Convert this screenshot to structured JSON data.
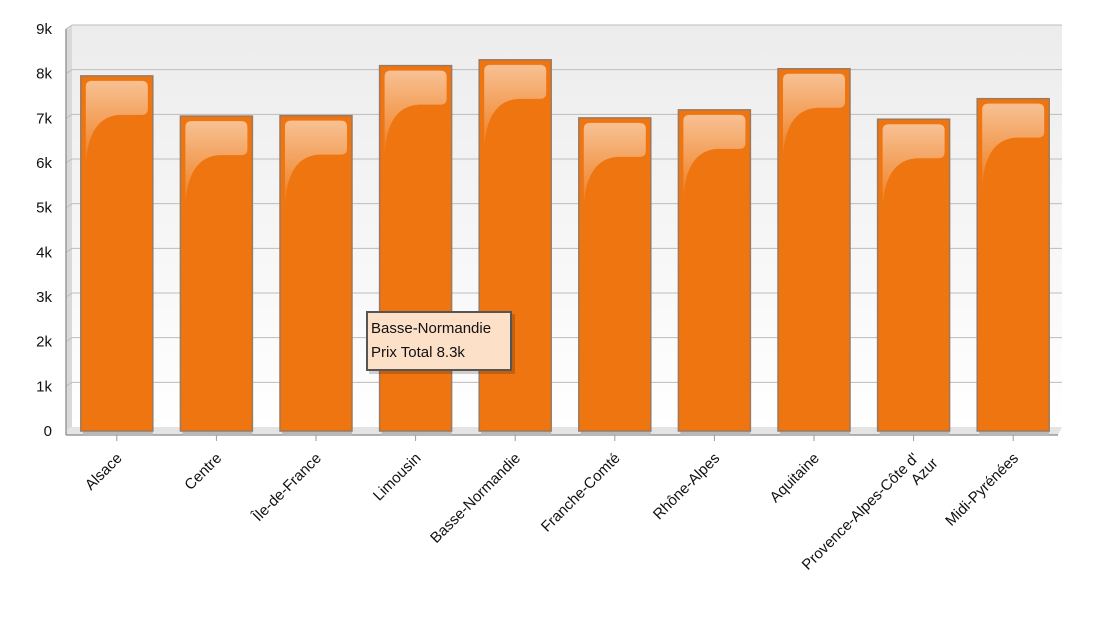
{
  "chart_data": {
    "type": "bar",
    "categories": [
      "Alsace",
      "Centre",
      "Île-de-France",
      "Limousin",
      "Basse-Normandie",
      "Franche-Comté",
      "Rhône-Alpes",
      "Aquitaine",
      "Provence-Alpes-Côte d' Azur",
      "Midi-Pyrénées"
    ],
    "series": [
      {
        "values": [
          7950,
          7050,
          7060,
          8180,
          8310,
          7010,
          7190,
          8110,
          6980,
          7440
        ]
      }
    ],
    "y_ticks": [
      "0",
      "1k",
      "2k",
      "3k",
      "4k",
      "5k",
      "6k",
      "7k",
      "8k",
      "9k"
    ],
    "ylim": [
      0,
      9000
    ],
    "grid": true,
    "bar_color": "#ee7510",
    "tooltip": {
      "title": "Basse-Normandie",
      "value_text": "Prix Total 8.3k"
    }
  }
}
